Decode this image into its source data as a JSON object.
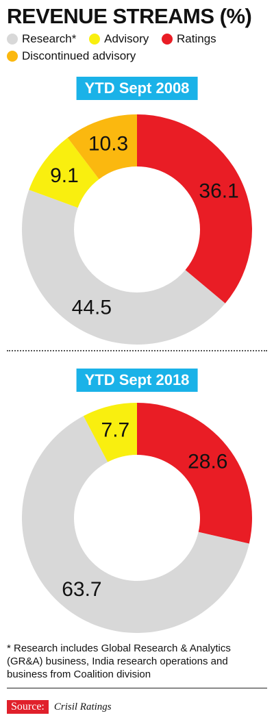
{
  "title": "REVENUE STREAMS (%)",
  "legend": [
    {
      "label": "Research*",
      "color": "#d8d8d8"
    },
    {
      "label": "Advisory",
      "color": "#f9ef0f"
    },
    {
      "label": "Ratings",
      "color": "#e91d25"
    },
    {
      "label": "Discontinued advisory",
      "color": "#fbb80f"
    }
  ],
  "chart_data": [
    {
      "type": "pie",
      "title": "YTD Sept 2008",
      "slices": [
        {
          "label": "Ratings",
          "value": 36.1,
          "color": "#e91d25"
        },
        {
          "label": "Research*",
          "value": 44.5,
          "color": "#d8d8d8"
        },
        {
          "label": "Advisory",
          "value": 9.1,
          "color": "#f9ef0f"
        },
        {
          "label": "Discontinued advisory",
          "value": 10.3,
          "color": "#fbb80f"
        }
      ]
    },
    {
      "type": "pie",
      "title": "YTD Sept 2018",
      "slices": [
        {
          "label": "Ratings",
          "value": 28.6,
          "color": "#e91d25"
        },
        {
          "label": "Research*",
          "value": 63.7,
          "color": "#d8d8d8"
        },
        {
          "label": "Advisory",
          "value": 7.7,
          "color": "#f9ef0f"
        }
      ]
    }
  ],
  "footnote": "* Research includes Global Research & Analytics (GR&A) business, India research operations and business from Coalition division",
  "source": {
    "label": "Source:",
    "text": "Crisil Ratings"
  }
}
